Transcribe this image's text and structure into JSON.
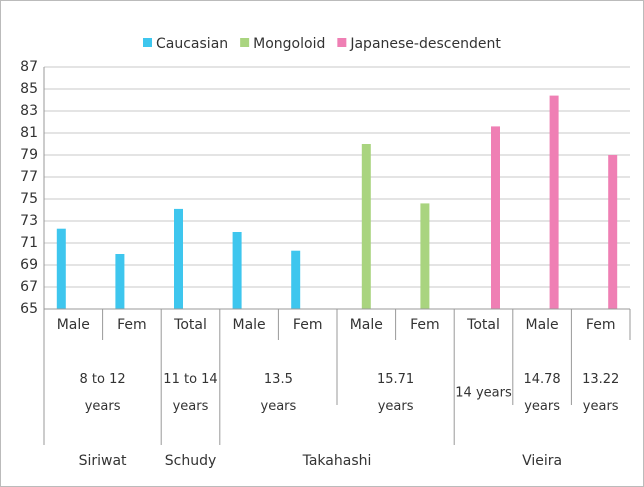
{
  "chart_data": {
    "type": "bar",
    "categories": [
      "Male",
      "Fem",
      "Total",
      "Male",
      "Fem",
      "Male",
      "Fem",
      "Total",
      "Male",
      "Fem"
    ],
    "age_groups": [
      "8 to 12 years",
      null,
      "11 to 14 years",
      "13.5 years",
      null,
      "15.71 years",
      null,
      "14 years",
      "14.78 years",
      "13.22 years"
    ],
    "studies": [
      "Siriwat",
      null,
      "Schudy",
      "Takahashi",
      null,
      null,
      null,
      "Vieira",
      null,
      null
    ],
    "series": [
      {
        "name": "Caucasian",
        "color": "#3ec6ee",
        "values": [
          72.3,
          70.0,
          74.1,
          72.0,
          70.3,
          null,
          null,
          null,
          null,
          null
        ]
      },
      {
        "name": "Mongoloid",
        "color": "#a9d47f",
        "values": [
          null,
          null,
          null,
          null,
          null,
          80.0,
          74.6,
          null,
          null,
          null
        ]
      },
      {
        "name": "Japanese-descendent",
        "color": "#ef7fb4",
        "values": [
          null,
          null,
          null,
          null,
          null,
          null,
          null,
          81.6,
          84.4,
          79.0
        ]
      }
    ],
    "ylim": [
      65,
      87
    ],
    "yticks": [
      65,
      67,
      69,
      71,
      73,
      75,
      77,
      79,
      81,
      83,
      85,
      87
    ],
    "grid": true,
    "legend": "top"
  }
}
